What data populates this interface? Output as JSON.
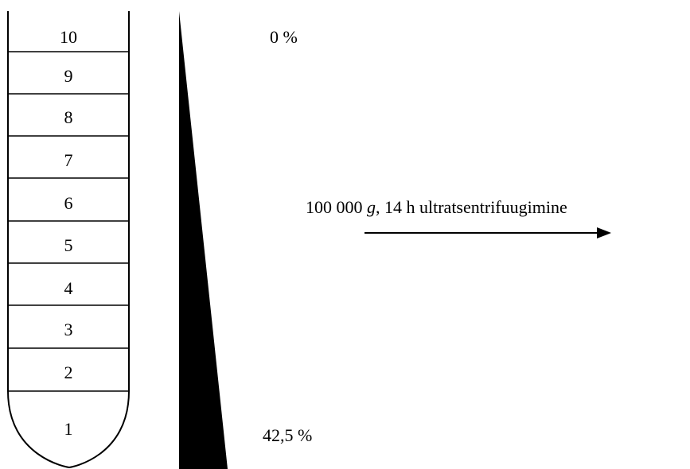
{
  "tube": {
    "fractions": [
      {
        "label": "1"
      },
      {
        "label": "2"
      },
      {
        "label": "3"
      },
      {
        "label": "4"
      },
      {
        "label": "5"
      },
      {
        "label": "6"
      },
      {
        "label": "7"
      },
      {
        "label": "8"
      },
      {
        "label": "9"
      },
      {
        "label": "10"
      }
    ]
  },
  "gradient": {
    "top_label": "0 %",
    "bottom_label": "42,5 %",
    "top_fraction": 0,
    "bottom_fraction": 0.425
  },
  "process": {
    "label_prefix": "100 000 ",
    "label_g": "g",
    "label_suffix": ", 14 h ultratsentrifuugimine"
  },
  "colors": {
    "ink": "#000000",
    "background": "#ffffff"
  }
}
